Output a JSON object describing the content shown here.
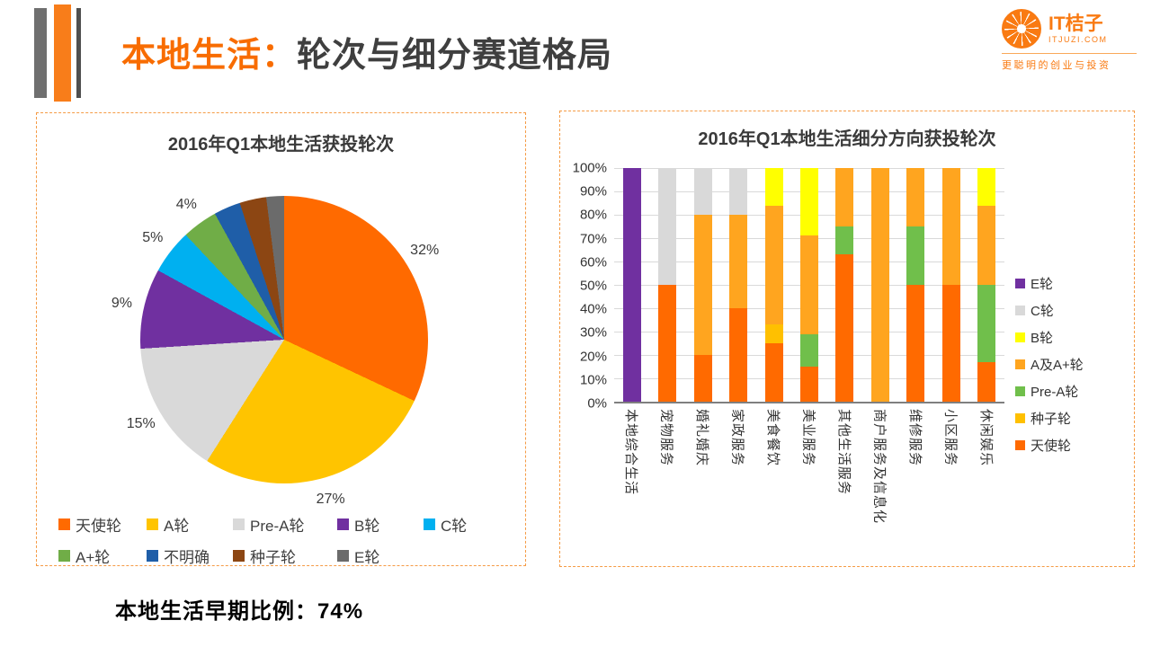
{
  "slide": {
    "title_highlight": "本地生活：",
    "title_rest": "轮次与细分赛道格局",
    "footer_note": "本地生活早期比例：74%",
    "accent_orange": "#F87D1A"
  },
  "logo": {
    "brand": "IT桔子",
    "domain": "ITJUZI.COM",
    "tagline": "更聪明的创业与投资"
  },
  "chart_data": [
    {
      "type": "pie",
      "title": "2016年Q1本地生活获投轮次",
      "start_angle_deg": 0,
      "direction": "clockwise",
      "slices": [
        {
          "label": "天使轮",
          "value": 32,
          "color": "#FF6A00",
          "show_label": true
        },
        {
          "label": "A轮",
          "value": 27,
          "color": "#FFC400",
          "show_label": true
        },
        {
          "label": "Pre-A轮",
          "value": 15,
          "color": "#D9D9D9",
          "show_label": true
        },
        {
          "label": "B轮",
          "value": 9,
          "color": "#7030A0",
          "show_label": true
        },
        {
          "label": "C轮",
          "value": 5,
          "color": "#00B0F0",
          "show_label": true
        },
        {
          "label": "A+轮",
          "value": 4,
          "color": "#70AD47",
          "show_label": true
        },
        {
          "label": "不明确",
          "value": 3,
          "color": "#1F5EA8",
          "show_label": false
        },
        {
          "label": "种子轮",
          "value": 3,
          "color": "#8C4613",
          "show_label": false
        },
        {
          "label": "E轮",
          "value": 2,
          "color": "#6B6B6B",
          "show_label": false
        }
      ]
    },
    {
      "type": "bar",
      "subtype": "stacked-percent",
      "title": "2016年Q1本地生活细分方向获投轮次",
      "ylim": [
        0,
        100
      ],
      "grid": true,
      "y_ticks": [
        "100%",
        "90%",
        "80%",
        "70%",
        "60%",
        "50%",
        "40%",
        "30%",
        "20%",
        "10%",
        "0%"
      ],
      "categories": [
        "本地综合生活",
        "宠物服务",
        "婚礼婚庆",
        "家政服务",
        "美食餐饮",
        "美业服务",
        "其他生活服务",
        "商户服务及信息化",
        "维修服务",
        "小区服务",
        "休闲娱乐"
      ],
      "series": [
        {
          "name": "天使轮",
          "color": "#FF6A00",
          "values": [
            0,
            50,
            20,
            40,
            25,
            15,
            63,
            0,
            50,
            50,
            17
          ]
        },
        {
          "name": "种子轮",
          "color": "#FFC000",
          "values": [
            0,
            0,
            0,
            0,
            8,
            0,
            0,
            0,
            0,
            0,
            0
          ]
        },
        {
          "name": "Pre-A轮",
          "color": "#70BF4B",
          "values": [
            0,
            0,
            0,
            0,
            0,
            14,
            12,
            0,
            25,
            0,
            33
          ]
        },
        {
          "name": "A及A+轮",
          "color": "#FFA51F",
          "values": [
            0,
            0,
            60,
            40,
            51,
            42,
            25,
            100,
            25,
            50,
            34
          ]
        },
        {
          "name": "B轮",
          "color": "#FFFF00",
          "values": [
            0,
            0,
            0,
            0,
            16,
            29,
            0,
            0,
            0,
            0,
            16
          ]
        },
        {
          "name": "C轮",
          "color": "#D9D9D9",
          "values": [
            0,
            50,
            20,
            20,
            0,
            0,
            0,
            0,
            0,
            0,
            0
          ]
        },
        {
          "name": "E轮",
          "color": "#7030A0",
          "values": [
            100,
            0,
            0,
            0,
            0,
            0,
            0,
            0,
            0,
            0,
            0
          ]
        }
      ],
      "legend_order_top_to_bottom": [
        "E轮",
        "C轮",
        "B轮",
        "A及A+轮",
        "Pre-A轮",
        "种子轮",
        "天使轮"
      ],
      "legend_position": "right"
    }
  ]
}
